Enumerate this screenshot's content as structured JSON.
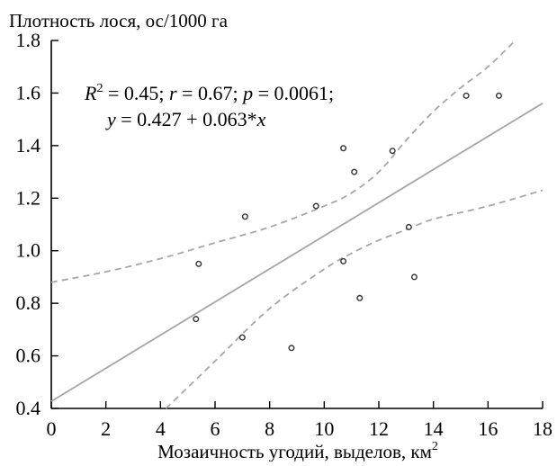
{
  "chart_data": {
    "type": "scatter",
    "title": "",
    "ylabel": "Плотность лося, ос/1000 га",
    "xlabel": "Мозаичность угодий, выделов, км",
    "xlabel_sup": "2",
    "xlim": [
      0,
      18
    ],
    "ylim": [
      0.4,
      1.8
    ],
    "xticks": [
      0,
      2,
      4,
      6,
      8,
      10,
      12,
      14,
      16,
      18
    ],
    "yticks": [
      0.4,
      0.6,
      0.8,
      1.0,
      1.2,
      1.4,
      1.6,
      1.8
    ],
    "grid": false,
    "annotation": {
      "line1": {
        "r2_label": "R",
        "r2_sup": "2",
        "r2_val": " = 0.45; ",
        "r_label": "r",
        "r_val": " = 0.67; ",
        "p_label": "p",
        "p_val": " = 0.0061;"
      },
      "line2": {
        "y_label": "y",
        "eq": " = 0.427 + 0.063*",
        "x_label": "x"
      }
    },
    "regression": {
      "intercept": 0.427,
      "slope": 0.063
    },
    "confidence_band": {
      "upper": [
        [
          0,
          0.88
        ],
        [
          2,
          0.92
        ],
        [
          4,
          0.97
        ],
        [
          6,
          1.03
        ],
        [
          8,
          1.09
        ],
        [
          10,
          1.17
        ],
        [
          11,
          1.22
        ],
        [
          12,
          1.3
        ],
        [
          13,
          1.42
        ],
        [
          14,
          1.53
        ],
        [
          15,
          1.62
        ],
        [
          16,
          1.7
        ],
        [
          17,
          1.8
        ]
      ],
      "lower": [
        [
          4.2,
          0.4
        ],
        [
          6,
          0.58
        ],
        [
          8,
          0.78
        ],
        [
          10,
          0.93
        ],
        [
          11,
          0.99
        ],
        [
          12,
          1.04
        ],
        [
          13,
          1.08
        ],
        [
          14,
          1.12
        ],
        [
          16,
          1.17
        ],
        [
          18,
          1.23
        ]
      ]
    },
    "points": [
      {
        "x": 5.4,
        "y": 0.95
      },
      {
        "x": 5.3,
        "y": 0.74
      },
      {
        "x": 7.1,
        "y": 1.13
      },
      {
        "x": 7.0,
        "y": 0.67
      },
      {
        "x": 8.8,
        "y": 0.63
      },
      {
        "x": 9.7,
        "y": 1.17
      },
      {
        "x": 10.7,
        "y": 1.39
      },
      {
        "x": 10.7,
        "y": 0.96
      },
      {
        "x": 11.1,
        "y": 1.3
      },
      {
        "x": 11.3,
        "y": 0.82
      },
      {
        "x": 12.5,
        "y": 1.38
      },
      {
        "x": 13.1,
        "y": 1.09
      },
      {
        "x": 13.3,
        "y": 0.9
      },
      {
        "x": 15.2,
        "y": 1.59
      },
      {
        "x": 16.4,
        "y": 1.59
      }
    ],
    "colors": {
      "regression": "#a6a6a6",
      "band": "#a6a6a6",
      "points": "#333333",
      "axis": "#000000"
    }
  }
}
